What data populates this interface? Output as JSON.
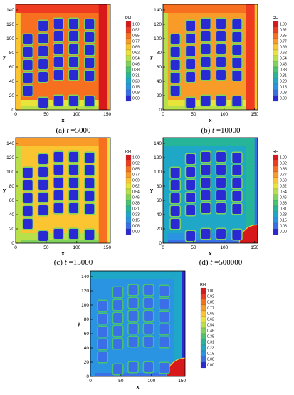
{
  "legend": {
    "title": "RH",
    "levels": [
      "1.00",
      "0.92",
      "0.85",
      "0.77",
      "0.69",
      "0.62",
      "0.54",
      "0.46",
      "0.38",
      "0.31",
      "0.23",
      "0.15",
      "0.08",
      "0.00"
    ],
    "colors": [
      "#d7191c",
      "#ef3b20",
      "#f7701f",
      "#f99b28",
      "#fbc532",
      "#e8e43a",
      "#b7e04b",
      "#7fd35c",
      "#48c46e",
      "#27b59a",
      "#1ea7c7",
      "#2a93e2",
      "#3a6fe8",
      "#2a2ad4"
    ]
  },
  "chart_data": [
    {
      "type": "contour",
      "panel": "a",
      "caption": "(a) t = 5000",
      "caption_prefix": "(a) ",
      "caption_var": "t",
      "caption_value": " =5000",
      "xlabel": "x",
      "ylabel": "y",
      "xlim": [
        0,
        155
      ],
      "ylim": [
        0,
        148
      ],
      "xticks": [
        "0",
        "50",
        "100",
        "150"
      ],
      "yticks": [
        "0",
        "20",
        "40",
        "60",
        "80",
        "100",
        "120",
        "140"
      ],
      "field": {
        "base": 0.85,
        "bottom_band": 0.62,
        "left_band": 0.69,
        "top_band": 0.92,
        "right_band": 1.0,
        "pore": 0.0,
        "pore_rim": 0.46
      },
      "grains": [
        [
          [
            20,
            99
          ],
          [
            45,
            118
          ],
          [
            70,
            121
          ],
          [
            95,
            121
          ],
          [
            121,
            120
          ]
        ],
        [
          [
            20,
            81
          ],
          [
            45,
            100
          ],
          [
            70,
            103
          ],
          [
            95,
            103
          ],
          [
            121,
            102
          ]
        ],
        [
          [
            20,
            63
          ],
          [
            45,
            82
          ],
          [
            70,
            85
          ],
          [
            95,
            85
          ],
          [
            121,
            84
          ]
        ],
        [
          [
            20,
            45
          ],
          [
            45,
            64
          ],
          [
            70,
            67
          ],
          [
            95,
            67
          ],
          [
            121,
            66
          ]
        ],
        [
          [
            20,
            27
          ],
          [
            45,
            46
          ],
          [
            70,
            49
          ],
          [
            95,
            49
          ],
          [
            121,
            48
          ]
        ],
        [
          [
            45,
            10
          ],
          [
            70,
            13
          ],
          [
            95,
            13
          ],
          [
            121,
            12
          ]
        ]
      ]
    },
    {
      "type": "contour",
      "panel": "b",
      "caption": "(b) t = 10000",
      "caption_prefix": "(b) ",
      "caption_var": "t",
      "caption_value": " =10000",
      "xlabel": "x",
      "ylabel": "y",
      "xlim": [
        0,
        155
      ],
      "ylim": [
        0,
        148
      ],
      "xticks": [
        "0",
        "50",
        "100",
        "150"
      ],
      "yticks": [
        "0",
        "20",
        "40",
        "60",
        "80",
        "100",
        "120",
        "140"
      ],
      "field": {
        "base": 0.77,
        "bottom_band": 0.62,
        "left_band": 0.54,
        "top_band": 0.85,
        "right_band": 0.92,
        "pore": 0.0,
        "pore_rim": 0.46
      },
      "grains": [
        [
          [
            20,
            99
          ],
          [
            45,
            118
          ],
          [
            70,
            121
          ],
          [
            95,
            121
          ],
          [
            121,
            120
          ]
        ],
        [
          [
            20,
            81
          ],
          [
            45,
            100
          ],
          [
            70,
            103
          ],
          [
            95,
            103
          ],
          [
            121,
            102
          ]
        ],
        [
          [
            20,
            63
          ],
          [
            45,
            82
          ],
          [
            70,
            85
          ],
          [
            95,
            85
          ],
          [
            121,
            84
          ]
        ],
        [
          [
            20,
            45
          ],
          [
            45,
            64
          ],
          [
            70,
            67
          ],
          [
            95,
            67
          ],
          [
            121,
            66
          ]
        ],
        [
          [
            20,
            27
          ],
          [
            45,
            46
          ],
          [
            70,
            49
          ],
          [
            95,
            49
          ],
          [
            121,
            48
          ]
        ],
        [
          [
            45,
            10
          ],
          [
            70,
            13
          ],
          [
            95,
            13
          ],
          [
            121,
            12
          ]
        ]
      ]
    },
    {
      "type": "contour",
      "panel": "c",
      "caption": "(c) t = 15000",
      "caption_prefix": "(c) ",
      "caption_var": "t",
      "caption_value": " =15000",
      "xlabel": "x",
      "ylabel": "y",
      "xlim": [
        0,
        155
      ],
      "ylim": [
        0,
        148
      ],
      "xticks": [
        "0",
        "50",
        "100",
        "150"
      ],
      "yticks": [
        "0",
        "20",
        "40",
        "60",
        "80",
        "100",
        "120",
        "140"
      ],
      "field": {
        "base": 0.69,
        "bottom_band": 0.54,
        "left_band": 0.54,
        "top_band": 0.77,
        "right_band": 0.85,
        "pore": 0.0,
        "pore_rim": 0.46
      },
      "grains": [
        [
          [
            20,
            99
          ],
          [
            45,
            118
          ],
          [
            70,
            121
          ],
          [
            95,
            121
          ],
          [
            121,
            120
          ]
        ],
        [
          [
            20,
            81
          ],
          [
            45,
            100
          ],
          [
            70,
            103
          ],
          [
            95,
            103
          ],
          [
            121,
            102
          ]
        ],
        [
          [
            20,
            63
          ],
          [
            45,
            82
          ],
          [
            70,
            85
          ],
          [
            95,
            85
          ],
          [
            121,
            84
          ]
        ],
        [
          [
            20,
            45
          ],
          [
            45,
            64
          ],
          [
            70,
            67
          ],
          [
            95,
            67
          ],
          [
            121,
            66
          ]
        ],
        [
          [
            20,
            27
          ],
          [
            45,
            46
          ],
          [
            70,
            49
          ],
          [
            95,
            49
          ],
          [
            121,
            48
          ]
        ],
        [
          [
            45,
            10
          ],
          [
            70,
            13
          ],
          [
            95,
            13
          ],
          [
            121,
            12
          ]
        ]
      ]
    },
    {
      "type": "contour",
      "panel": "d",
      "caption": "(d) t = 500000",
      "caption_prefix": "(d) ",
      "caption_var": "t",
      "caption_value": " =500000",
      "xlabel": "x",
      "ylabel": "y",
      "xlim": [
        0,
        155
      ],
      "ylim": [
        0,
        148
      ],
      "xticks": [
        "0",
        "50",
        "100",
        "150"
      ],
      "yticks": [
        "0",
        "20",
        "40",
        "60",
        "80",
        "100",
        "120",
        "140"
      ],
      "field": {
        "base": 0.23,
        "bottom_band": 0.15,
        "left_band": 0.23,
        "top_band": 0.31,
        "right_band": 0.31,
        "pore": 0.0,
        "pore_rim": 0.46,
        "corner_value": 1.0
      },
      "grains": [
        [
          [
            20,
            99
          ],
          [
            45,
            118
          ],
          [
            70,
            121
          ],
          [
            95,
            121
          ],
          [
            121,
            120
          ]
        ],
        [
          [
            20,
            81
          ],
          [
            45,
            100
          ],
          [
            70,
            103
          ],
          [
            95,
            103
          ],
          [
            121,
            102
          ]
        ],
        [
          [
            20,
            63
          ],
          [
            45,
            82
          ],
          [
            70,
            85
          ],
          [
            95,
            85
          ],
          [
            121,
            84
          ]
        ],
        [
          [
            20,
            45
          ],
          [
            45,
            64
          ],
          [
            70,
            67
          ],
          [
            95,
            67
          ],
          [
            121,
            66
          ]
        ],
        [
          [
            20,
            27
          ],
          [
            45,
            46
          ],
          [
            70,
            49
          ],
          [
            95,
            49
          ],
          [
            121,
            48
          ]
        ],
        [
          [
            45,
            10
          ],
          [
            70,
            13
          ],
          [
            95,
            13
          ],
          [
            121,
            12
          ]
        ]
      ]
    },
    {
      "type": "contour",
      "panel": "e",
      "caption": "",
      "xlabel": "x",
      "ylabel": "y",
      "xlim": [
        0,
        155
      ],
      "ylim": [
        0,
        148
      ],
      "xticks": [
        "0",
        "50",
        "100",
        "150"
      ],
      "yticks": [
        "0",
        "20",
        "40",
        "60",
        "80",
        "100",
        "120",
        "140"
      ],
      "field": {
        "base": 0.15,
        "bottom_band": 0.15,
        "left_band": 0.15,
        "top_band": 0.23,
        "right_band": 0.23,
        "pore": 0.08,
        "pore_rim": 0.38,
        "corner_value": 1.0
      },
      "grains": [
        [
          [
            20,
            99
          ],
          [
            45,
            118
          ],
          [
            70,
            121
          ],
          [
            95,
            121
          ],
          [
            121,
            120
          ]
        ],
        [
          [
            20,
            81
          ],
          [
            45,
            100
          ],
          [
            70,
            103
          ],
          [
            95,
            103
          ],
          [
            121,
            102
          ]
        ],
        [
          [
            20,
            63
          ],
          [
            45,
            82
          ],
          [
            70,
            85
          ],
          [
            95,
            85
          ],
          [
            121,
            84
          ]
        ],
        [
          [
            20,
            45
          ],
          [
            45,
            64
          ],
          [
            70,
            67
          ],
          [
            95,
            67
          ],
          [
            121,
            66
          ]
        ],
        [
          [
            20,
            27
          ],
          [
            45,
            46
          ],
          [
            70,
            49
          ],
          [
            95,
            49
          ],
          [
            121,
            48
          ]
        ],
        [
          [
            45,
            10
          ],
          [
            70,
            13
          ],
          [
            95,
            13
          ],
          [
            121,
            12
          ]
        ]
      ]
    }
  ]
}
